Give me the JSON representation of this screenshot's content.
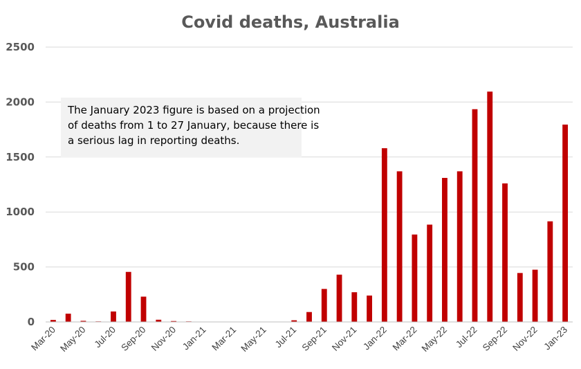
{
  "chart_data": {
    "type": "bar",
    "title": "Covid deaths, Australia",
    "xlabel": "",
    "ylabel": "",
    "ylim": [
      0,
      2500
    ],
    "yticks": [
      "0",
      "500",
      "1000",
      "1500",
      "2000",
      "2500"
    ],
    "grid": true,
    "legend": "none",
    "bar_color": "#c00000",
    "categories": [
      "Mar-20",
      "Apr-20",
      "May-20",
      "Jun-20",
      "Jul-20",
      "Aug-20",
      "Sep-20",
      "Oct-20",
      "Nov-20",
      "Dec-20",
      "Jan-21",
      "Feb-21",
      "Mar-21",
      "Apr-21",
      "May-21",
      "Jun-21",
      "Jul-21",
      "Aug-21",
      "Sep-21",
      "Oct-21",
      "Nov-21",
      "Dec-21",
      "Jan-22",
      "Feb-22",
      "Mar-22",
      "Apr-22",
      "May-22",
      "Jun-22",
      "Jul-22",
      "Aug-22",
      "Sep-22",
      "Oct-22",
      "Nov-22",
      "Dec-22",
      "Jan-23"
    ],
    "tick_labels": [
      "Mar-20",
      "May-20",
      "Jul-20",
      "Sep-20",
      "Nov-20",
      "Jan-21",
      "Mar-21",
      "May-21",
      "Jul-21",
      "Sep-21",
      "Nov-21",
      "Jan-22",
      "Mar-22",
      "May-22",
      "Jul-22",
      "Sep-22",
      "Nov-22",
      "Jan-23"
    ],
    "values": [
      18,
      75,
      10,
      5,
      95,
      455,
      230,
      20,
      8,
      5,
      2,
      0,
      1,
      3,
      2,
      0,
      15,
      90,
      300,
      430,
      270,
      240,
      1580,
      1370,
      795,
      885,
      1310,
      1370,
      1935,
      2095,
      1260,
      445,
      475,
      915,
      1795
    ],
    "annotation": {
      "lines": [
        "The January 2023 figure is based on a projection",
        "of deaths from 1 to 27 January, because there is",
        "a serious lag in reporting deaths."
      ]
    }
  }
}
